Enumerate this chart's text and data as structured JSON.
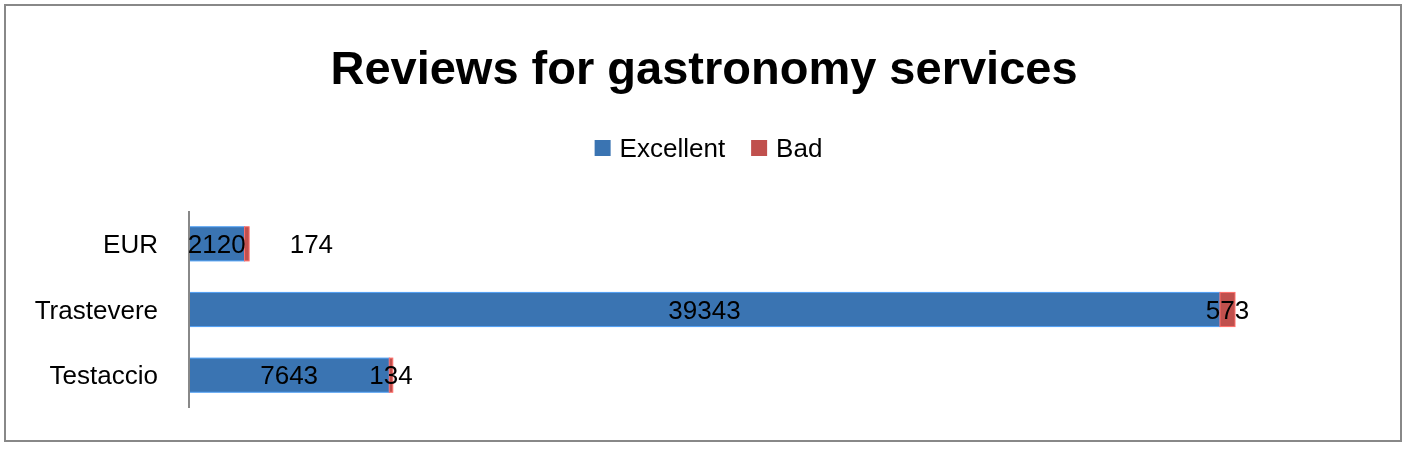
{
  "chart_data": {
    "type": "bar",
    "title": "Reviews for gastronomy services",
    "orientation": "horizontal",
    "stacked": true,
    "categories": [
      "EUR",
      "Trastevere",
      "Testaccio"
    ],
    "series": [
      {
        "name": "Excellent",
        "color": "#3a74b2",
        "values": [
          2120,
          39343,
          7643
        ]
      },
      {
        "name": "Bad",
        "color": "#c0504d",
        "values": [
          174,
          573,
          134
        ]
      }
    ],
    "data_labels": true,
    "legend": "top"
  }
}
